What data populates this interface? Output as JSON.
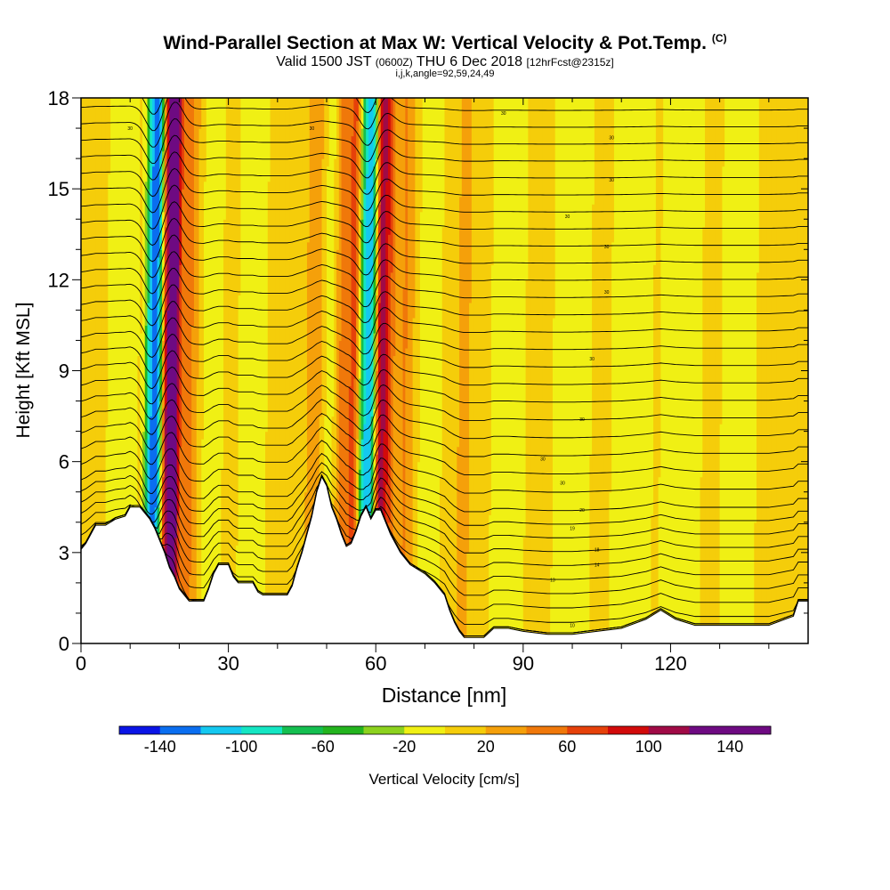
{
  "title": {
    "main": "Wind-Parallel Section at Max W: Vertical Velocity & Pot.Temp.",
    "copyright": "(C)",
    "valid_prefix": "Valid 1500 JST",
    "valid_utc": "(0600Z)",
    "valid_date": "THU 6 Dec 2018",
    "forecast": "[12hrFcst@2315z]",
    "params": "i,j,k,angle=92,59,24,49"
  },
  "chart_data": {
    "type": "heatmap",
    "xlabel": "Distance [nm]",
    "ylabel": "Height [Kft MSL]",
    "xlim": [
      0,
      148
    ],
    "ylim": [
      0,
      18
    ],
    "xticks": [
      0,
      30,
      60,
      90,
      120
    ],
    "yticks": [
      0,
      3,
      6,
      9,
      12,
      15,
      18
    ],
    "colorbar": {
      "label": "Vertical Velocity [cm/s]",
      "ticks": [
        -140,
        -100,
        -60,
        -20,
        20,
        60,
        100,
        140
      ],
      "bins": [
        -160,
        -140,
        -120,
        -100,
        -80,
        -60,
        -40,
        -20,
        0,
        20,
        40,
        60,
        80,
        100,
        120,
        140,
        160
      ],
      "colors": [
        "#0a14e6",
        "#0a6ef0",
        "#14c8f0",
        "#14e6c3",
        "#14bf50",
        "#23b41e",
        "#8cd21e",
        "#f0f014",
        "#f5cd0a",
        "#f5a00a",
        "#f0780a",
        "#e6410a",
        "#d20a0a",
        "#a00a46",
        "#6e0a82",
        "#6e0a82"
      ]
    },
    "terrain": [
      [
        0,
        3.1
      ],
      [
        1,
        3.3
      ],
      [
        3,
        3.9
      ],
      [
        5,
        3.9
      ],
      [
        7,
        4.1
      ],
      [
        9,
        4.2
      ],
      [
        10,
        4.5
      ],
      [
        12,
        4.5
      ],
      [
        14,
        4.1
      ],
      [
        15,
        3.8
      ],
      [
        16,
        3.4
      ],
      [
        17,
        3.0
      ],
      [
        18,
        2.5
      ],
      [
        19,
        2.2
      ],
      [
        20,
        1.8
      ],
      [
        21,
        1.6
      ],
      [
        22,
        1.4
      ],
      [
        25,
        1.4
      ],
      [
        26,
        1.8
      ],
      [
        27,
        2.3
      ],
      [
        28,
        2.6
      ],
      [
        30,
        2.6
      ],
      [
        31,
        2.2
      ],
      [
        32,
        2.0
      ],
      [
        35,
        2.0
      ],
      [
        36,
        1.7
      ],
      [
        37,
        1.6
      ],
      [
        42,
        1.6
      ],
      [
        43,
        1.9
      ],
      [
        44,
        2.5
      ],
      [
        45,
        3.0
      ],
      [
        46,
        3.6
      ],
      [
        47,
        4.2
      ],
      [
        48,
        5.0
      ],
      [
        49,
        5.5
      ],
      [
        50,
        5.2
      ],
      [
        51,
        4.5
      ],
      [
        52,
        4.1
      ],
      [
        53,
        3.6
      ],
      [
        54,
        3.2
      ],
      [
        55,
        3.3
      ],
      [
        56,
        3.7
      ],
      [
        57,
        4.2
      ],
      [
        58,
        4.5
      ],
      [
        59,
        4.1
      ],
      [
        60,
        4.4
      ],
      [
        61,
        4.4
      ],
      [
        62,
        4.0
      ],
      [
        63,
        3.6
      ],
      [
        64,
        3.3
      ],
      [
        65,
        3.0
      ],
      [
        67,
        2.6
      ],
      [
        70,
        2.3
      ],
      [
        72,
        2.0
      ],
      [
        74,
        1.6
      ],
      [
        75,
        1.1
      ],
      [
        76,
        0.7
      ],
      [
        77,
        0.4
      ],
      [
        78,
        0.2
      ],
      [
        82,
        0.2
      ],
      [
        84,
        0.5
      ],
      [
        87,
        0.5
      ],
      [
        90,
        0.4
      ],
      [
        95,
        0.3
      ],
      [
        100,
        0.3
      ],
      [
        105,
        0.4
      ],
      [
        110,
        0.5
      ],
      [
        115,
        0.8
      ],
      [
        118,
        1.1
      ],
      [
        121,
        0.8
      ],
      [
        125,
        0.6
      ],
      [
        130,
        0.6
      ],
      [
        140,
        0.6
      ],
      [
        145,
        0.9
      ],
      [
        146,
        1.4
      ],
      [
        148,
        1.4
      ]
    ],
    "features": [
      {
        "center": 14,
        "width": 1.0,
        "value": -90
      },
      {
        "center": 15.5,
        "width": 1.2,
        "value": -125
      },
      {
        "center": 17.5,
        "width": 1.1,
        "value": 95
      },
      {
        "center": 19.0,
        "width": 1.0,
        "value": 120
      },
      {
        "center": 21.5,
        "width": 2.5,
        "value": 40
      },
      {
        "center": 8.5,
        "width": 3.0,
        "value": -30
      },
      {
        "center": 26.5,
        "width": 2.5,
        "value": -25
      },
      {
        "center": 35.0,
        "width": 3.0,
        "value": -25
      },
      {
        "center": 48.5,
        "width": 2.5,
        "value": 28
      },
      {
        "center": 50.5,
        "width": 2.0,
        "value": -35
      },
      {
        "center": 53.0,
        "width": 1.5,
        "value": 40
      },
      {
        "center": 55.5,
        "width": 1.3,
        "value": 55
      },
      {
        "center": 57.5,
        "width": 1.0,
        "value": -85
      },
      {
        "center": 59.0,
        "width": 1.1,
        "value": -110
      },
      {
        "center": 61.0,
        "width": 1.2,
        "value": 85
      },
      {
        "center": 62.5,
        "width": 1.3,
        "value": 50
      },
      {
        "center": 66.0,
        "width": 2.0,
        "value": 32
      },
      {
        "center": 71.0,
        "width": 3.0,
        "value": -22
      },
      {
        "center": 78.0,
        "width": 3.0,
        "value": 12
      },
      {
        "center": 87.0,
        "width": 4.0,
        "value": -22
      },
      {
        "center": 100.0,
        "width": 4.0,
        "value": -25
      },
      {
        "center": 112.0,
        "width": 4.0,
        "value": -26
      },
      {
        "center": 122.5,
        "width": 4.0,
        "value": -26
      },
      {
        "center": 134.0,
        "width": 3.5,
        "value": -28
      }
    ],
    "isentrope_labels": [
      {
        "x": 10,
        "y": 17.0,
        "text": "30"
      },
      {
        "x": 47,
        "y": 17.0,
        "text": "30"
      },
      {
        "x": 86,
        "y": 17.5,
        "text": "30"
      },
      {
        "x": 108,
        "y": 16.7,
        "text": "30"
      },
      {
        "x": 108,
        "y": 15.3,
        "text": "30"
      },
      {
        "x": 99,
        "y": 14.1,
        "text": "30"
      },
      {
        "x": 107,
        "y": 13.1,
        "text": "30"
      },
      {
        "x": 107,
        "y": 11.6,
        "text": "30"
      },
      {
        "x": 104,
        "y": 9.4,
        "text": "30"
      },
      {
        "x": 102,
        "y": 7.4,
        "text": "30"
      },
      {
        "x": 94,
        "y": 6.1,
        "text": "30"
      },
      {
        "x": 98,
        "y": 5.3,
        "text": "30"
      },
      {
        "x": 102,
        "y": 4.4,
        "text": "20"
      },
      {
        "x": 100,
        "y": 3.8,
        "text": "19"
      },
      {
        "x": 105,
        "y": 3.1,
        "text": "18"
      },
      {
        "x": 105,
        "y": 2.6,
        "text": "14"
      },
      {
        "x": 96,
        "y": 2.1,
        "text": "13"
      },
      {
        "x": 100,
        "y": 0.6,
        "text": "10"
      }
    ]
  }
}
